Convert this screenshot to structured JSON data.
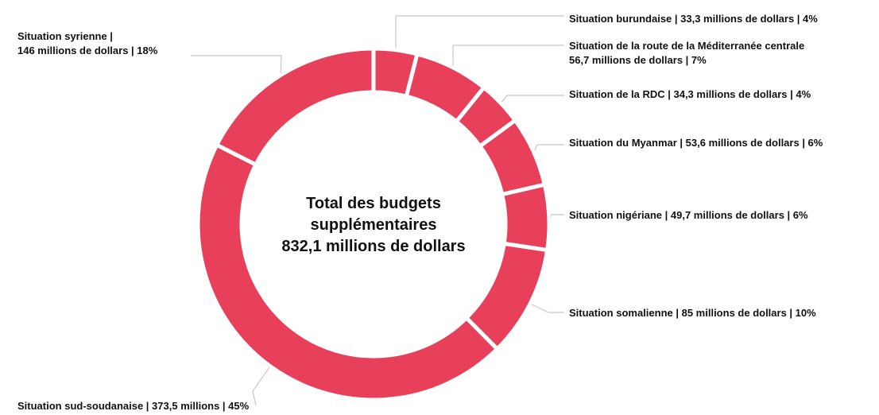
{
  "chart_data": {
    "type": "pie",
    "donut": true,
    "color": "#e8405a",
    "center_label": {
      "line1": "Total des budgets",
      "line2": "supplémentaires",
      "line3": "832,1 millions de dollars"
    },
    "total": 832.1,
    "slices": [
      {
        "label": "Situation burundaise | 33,3 millions de dollars | 4%",
        "value": 33.3,
        "percent": 4
      },
      {
        "label": "Situation de la route de la Méditerranée centrale",
        "label2": "56,7 millions de dollars | 7%",
        "value": 56.7,
        "percent": 7
      },
      {
        "label": "Situation de la RDC | 34,3 millions de dollars | 4%",
        "value": 34.3,
        "percent": 4
      },
      {
        "label": "Situation du Myanmar | 53,6 millions de dollars | 6%",
        "value": 53.6,
        "percent": 6
      },
      {
        "label": "Situation nigériane | 49,7 millions de dollars | 6%",
        "value": 49.7,
        "percent": 6
      },
      {
        "label": "Situation somalienne | 85 millions de dollars | 10%",
        "value": 85,
        "percent": 10
      },
      {
        "label": "Situation sud-soudanaise | 373,5 millions | 45%",
        "value": 373.5,
        "percent": 45
      },
      {
        "label": "Situation syrienne |",
        "label2": "146 millions de dollars | 18%",
        "value": 146,
        "percent": 18
      }
    ]
  }
}
